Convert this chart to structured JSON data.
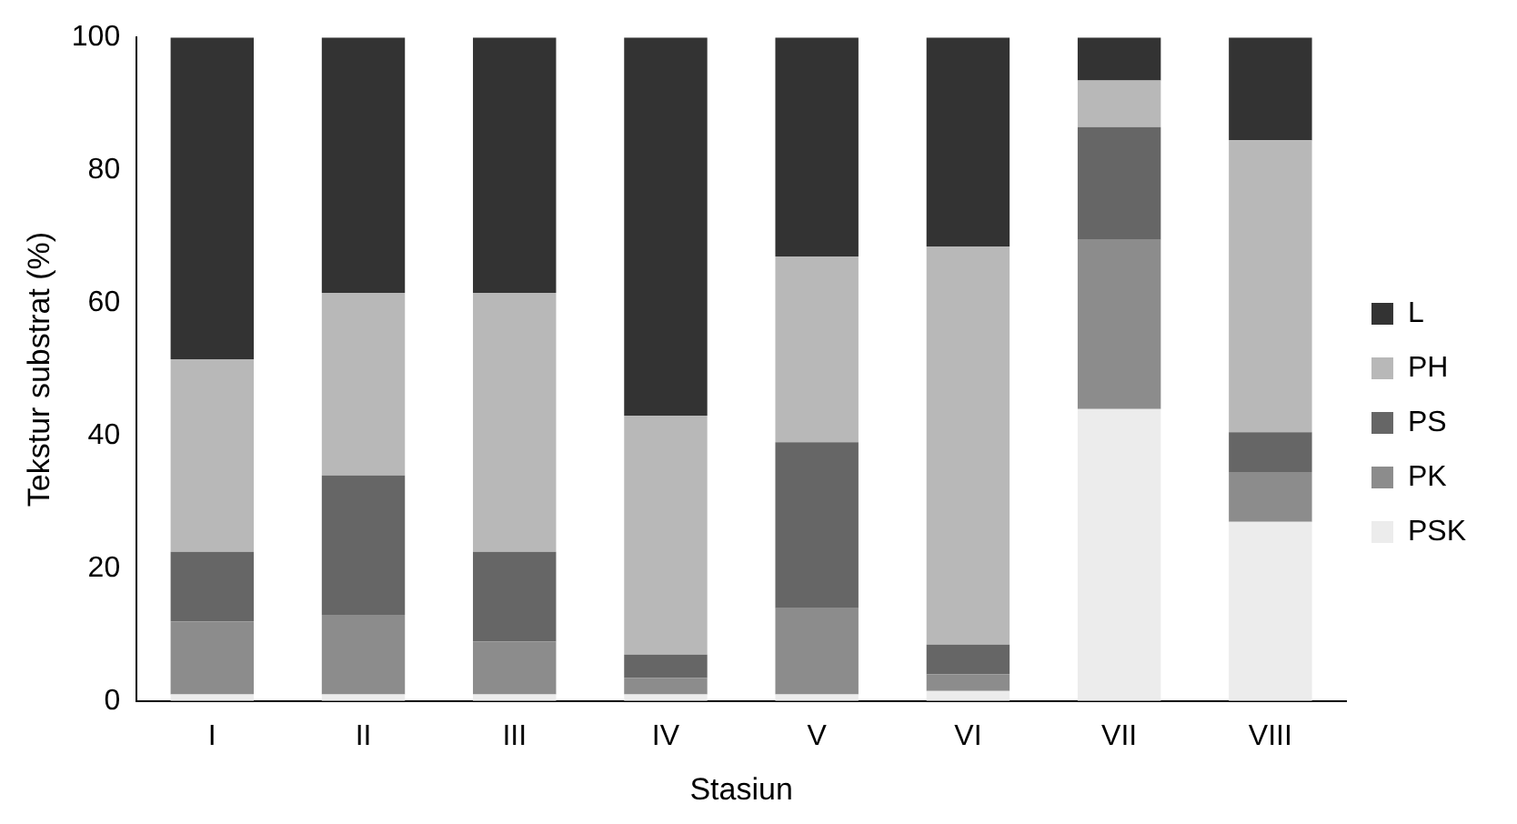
{
  "chart_data": {
    "type": "bar",
    "stacked": true,
    "xlabel": "Stasiun",
    "ylabel": "Tekstur substrat (%)",
    "categories": [
      "I",
      "II",
      "III",
      "IV",
      "V",
      "VI",
      "VII",
      "VIII"
    ],
    "series": [
      {
        "name": "PSK",
        "color": "#ececec",
        "values": [
          1,
          1,
          1,
          1,
          1,
          1.5,
          44,
          27
        ]
      },
      {
        "name": "PK",
        "color": "#8c8c8c",
        "values": [
          11,
          12,
          8,
          2.5,
          13,
          2.5,
          25.5,
          7.5
        ]
      },
      {
        "name": "PS",
        "color": "#666666",
        "values": [
          10.5,
          21,
          13.5,
          3.5,
          25,
          4.5,
          17,
          6
        ]
      },
      {
        "name": "PH",
        "color": "#b8b8b8",
        "values": [
          29,
          27.5,
          39,
          36,
          28,
          60,
          7,
          44
        ]
      },
      {
        "name": "L",
        "color": "#333333",
        "values": [
          48.5,
          38.5,
          38.5,
          57,
          33,
          31.5,
          6.5,
          15.5
        ]
      }
    ],
    "ylim": [
      0,
      100
    ],
    "yticks": [
      0,
      20,
      40,
      60,
      80,
      100
    ],
    "grid": false,
    "legend": "right"
  }
}
